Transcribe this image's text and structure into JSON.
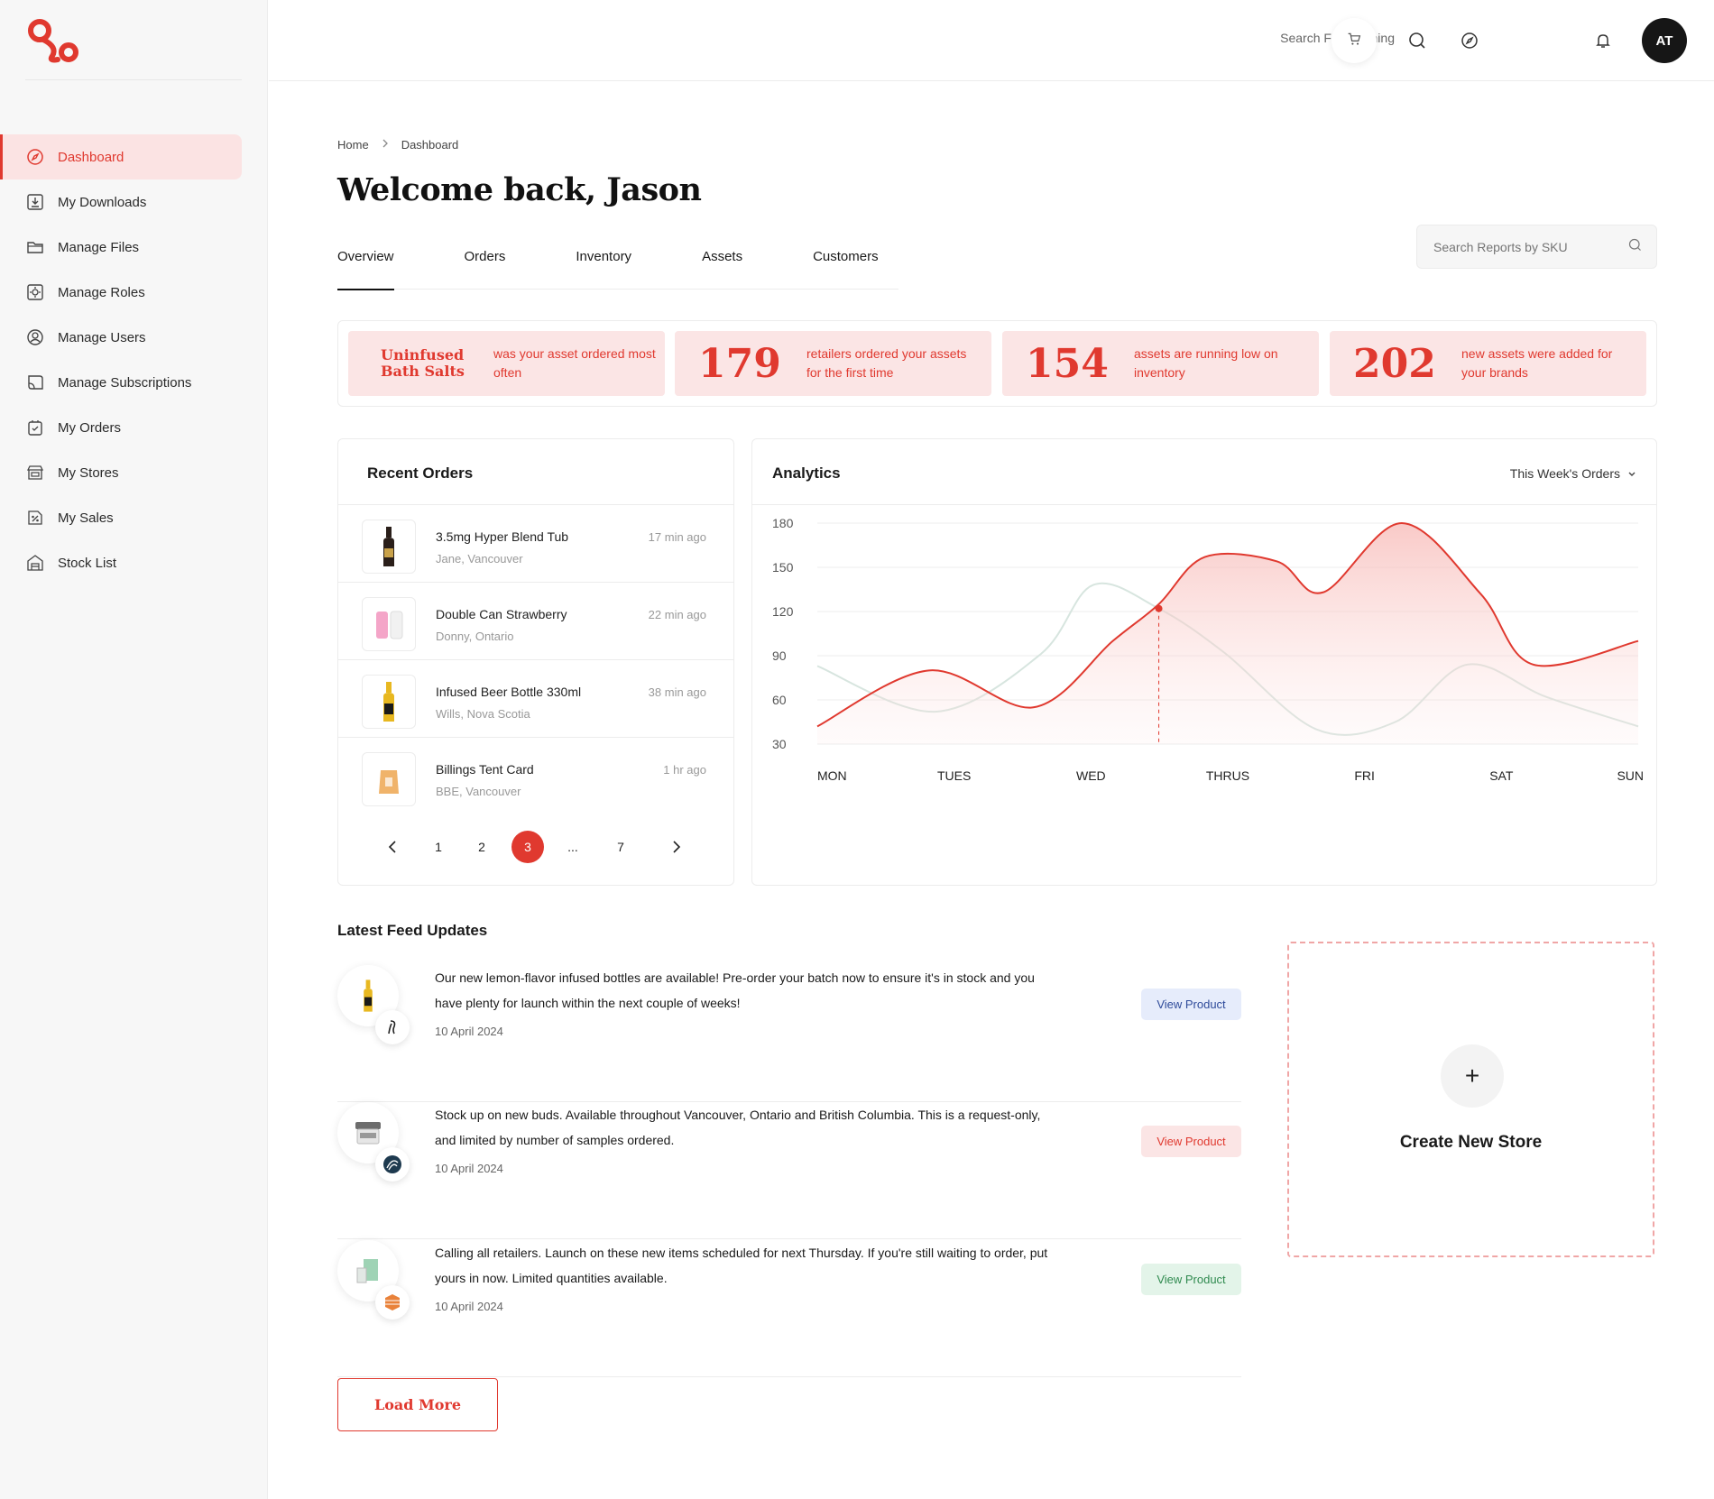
{
  "brand": {
    "accent": "#e0392f",
    "accent_light": "#fbe5e5"
  },
  "sidebar": {
    "items": [
      {
        "label": "Dashboard",
        "icon": "compass-icon",
        "active": true
      },
      {
        "label": "My Downloads",
        "icon": "download-icon"
      },
      {
        "label": "Manage Files",
        "icon": "folder-icon"
      },
      {
        "label": "Manage Roles",
        "icon": "roles-icon"
      },
      {
        "label": "Manage Users",
        "icon": "user-circle-icon"
      },
      {
        "label": "Manage Subscriptions",
        "icon": "subscription-icon"
      },
      {
        "label": "My Orders",
        "icon": "orders-bag-icon"
      },
      {
        "label": "My Stores",
        "icon": "store-icon"
      },
      {
        "label": "My Sales",
        "icon": "sales-percent-icon"
      },
      {
        "label": "Stock List",
        "icon": "warehouse-icon"
      }
    ]
  },
  "topbar": {
    "search_label": "Search For Anything",
    "avatar_initials": "AT"
  },
  "breadcrumb": {
    "home": "Home",
    "current": "Dashboard"
  },
  "page": {
    "title": "Welcome back, Jason"
  },
  "tabs": [
    "Overview",
    "Orders",
    "Inventory",
    "Assets",
    "Customers"
  ],
  "sku_search": {
    "placeholder": "Search Reports by SKU"
  },
  "stats": [
    {
      "value": "Uninfused Bath Salts",
      "desc": "was your asset ordered most often"
    },
    {
      "value": "179",
      "desc": "retailers ordered your assets for the first time"
    },
    {
      "value": "154",
      "desc": "assets are running low on inventory"
    },
    {
      "value": "202",
      "desc": "new assets were added for your brands"
    }
  ],
  "recent_orders": {
    "title": "Recent Orders",
    "items": [
      {
        "name": "3.5mg Hyper Blend Tub",
        "location": "Jane, Vancouver",
        "time": "17 min ago"
      },
      {
        "name": "Double Can Strawberry",
        "location": "Donny, Ontario",
        "time": "22 min ago"
      },
      {
        "name": "Infused Beer Bottle 330ml",
        "location": "Wills, Nova Scotia",
        "time": "38 min ago"
      },
      {
        "name": "Billings Tent Card",
        "location": "BBE, Vancouver",
        "time": "1 hr ago"
      }
    ],
    "pagination": {
      "pages": [
        "1",
        "2",
        "3",
        "...",
        "7"
      ],
      "current": "3"
    }
  },
  "analytics": {
    "title": "Analytics",
    "filter": "This Week's Orders"
  },
  "chart_data": {
    "type": "area",
    "x": [
      "MON",
      "TUES",
      "WED",
      "THRUS",
      "FRI",
      "SAT",
      "SUN"
    ],
    "yticks": [
      180,
      150,
      120,
      90,
      60,
      30
    ],
    "ylim": [
      30,
      180
    ],
    "grid": true,
    "series": [
      {
        "color": "#e0392f",
        "fill": true,
        "points": [
          [
            0,
            42
          ],
          [
            0.85,
            80
          ],
          [
            1.65,
            55
          ],
          [
            2.25,
            100
          ],
          [
            2.6,
            125
          ],
          [
            2.95,
            157
          ],
          [
            3.5,
            154
          ],
          [
            3.85,
            133
          ],
          [
            4.45,
            180
          ],
          [
            5.05,
            132
          ],
          [
            5.45,
            84
          ],
          [
            6.25,
            100
          ]
        ]
      },
      {
        "color": "#d7e5df",
        "fill": false,
        "points": [
          [
            0,
            83
          ],
          [
            0.9,
            52
          ],
          [
            1.7,
            91
          ],
          [
            2.1,
            138
          ],
          [
            2.6,
            122
          ],
          [
            3.1,
            92
          ],
          [
            3.8,
            40
          ],
          [
            4.4,
            45
          ],
          [
            4.95,
            84
          ],
          [
            5.55,
            62
          ],
          [
            6.25,
            42
          ]
        ]
      }
    ],
    "highlight": {
      "x": 2.6,
      "y": 122
    }
  },
  "feed": {
    "title": "Latest Feed Updates",
    "items": [
      {
        "text": "Our new lemon-flavor infused bottles are available! Pre-order your batch now to ensure it's in stock and you have plenty for launch within the next couple of weeks!",
        "date": "10 April 2024",
        "button": "View Product",
        "style": "blue"
      },
      {
        "text": "Stock up on new buds. Available throughout Vancouver, Ontario and British Columbia. This is a request-only, and limited by number of samples ordered.",
        "date": "10 April 2024",
        "button": "View Product",
        "style": "pink"
      },
      {
        "text": "Calling all retailers. Launch on these new items scheduled for next Thursday. If you're still waiting to order, put yours in now. Limited quantities available.",
        "date": "10 April 2024",
        "button": "View Product",
        "style": "green"
      }
    ],
    "load_more": "Load More"
  },
  "create_store": {
    "plus": "+",
    "label": "Create New Store"
  }
}
